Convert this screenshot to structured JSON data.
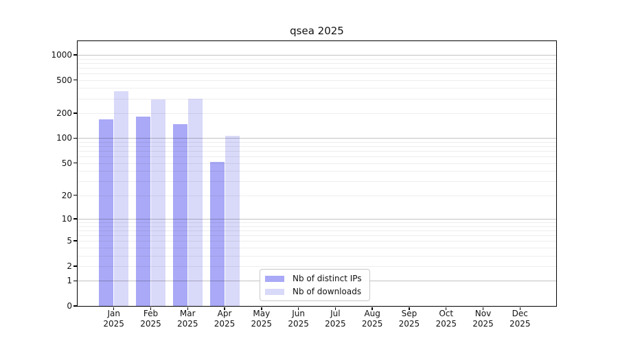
{
  "title": "qsea 2025",
  "chart_data": {
    "type": "bar",
    "title": "qsea 2025",
    "categories": [
      "Jan",
      "Feb",
      "Mar",
      "Apr",
      "May",
      "Jun",
      "Jul",
      "Aug",
      "Sep",
      "Oct",
      "Nov",
      "Dec"
    ],
    "year": "2025",
    "series": [
      {
        "name": "Nb of distinct IPs",
        "color": "#a9a9f7",
        "values": [
          170,
          181,
          148,
          52,
          null,
          null,
          null,
          null,
          null,
          null,
          null,
          null
        ]
      },
      {
        "name": "Nb of downloads",
        "color": "#d9d9f9",
        "values": [
          365,
          295,
          299,
          107,
          null,
          null,
          null,
          null,
          null,
          null,
          null,
          null
        ]
      }
    ],
    "xlabel": "",
    "ylabel": "",
    "y_ticks": [
      0,
      1,
      2,
      5,
      10,
      20,
      50,
      100,
      200,
      500,
      1000
    ],
    "y_scale": "log10(1+x)",
    "ylim": [
      0,
      1450
    ],
    "grid": true,
    "legend_position": "bottom-center"
  },
  "colors": {
    "background": "#ffffff",
    "spine": "#000000",
    "major_grid": "#c2c2c2",
    "minor_grid": "#ededed",
    "bar_distinct_ips": "#a9a9f7",
    "bar_downloads": "#d9d9f9"
  }
}
